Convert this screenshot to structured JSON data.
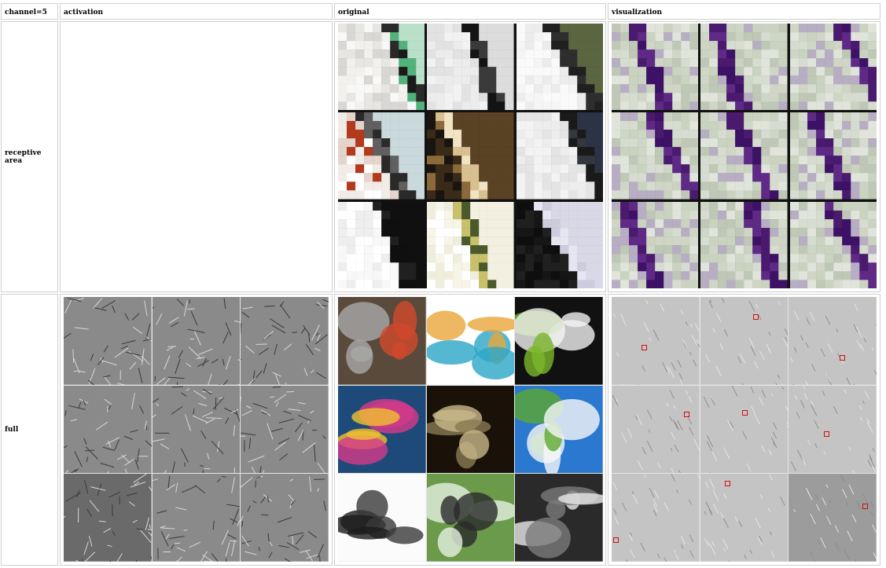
{
  "table": {
    "headers": {
      "label": "channel=5",
      "activation": "activation",
      "original": "original",
      "visualization": "visualization"
    },
    "rows": {
      "receptive": "receptive area",
      "full": "full"
    }
  },
  "colors": {
    "border": "#cfcfcf",
    "purple": "#4a1a6e",
    "box": "#d01010"
  },
  "images": {
    "full_original": [
      "motocross-rider",
      "lion-illustration-scarf",
      "tie-on-shirt",
      "style-magazine-cover",
      "iguana",
      "soccer-ball-on-grass",
      "black-leather-clutch",
      "bird-in-tree",
      "open-book-desk"
    ]
  }
}
